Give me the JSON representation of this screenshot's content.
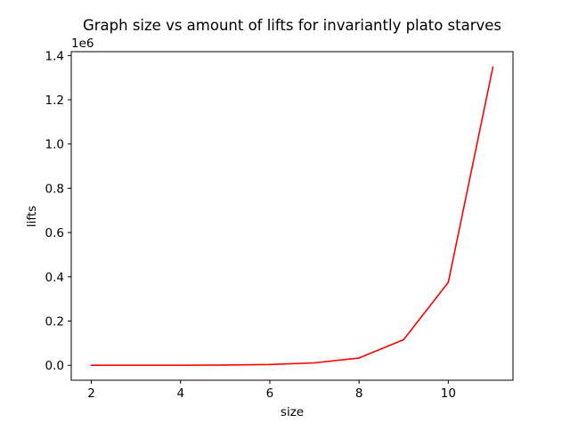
{
  "chart_data": {
    "type": "line",
    "title": "Graph size vs amount of lifts for invariantly plato starves",
    "xlabel": "size",
    "ylabel": "lifts",
    "y_offset_label": "1e6",
    "xlim": [
      1.55,
      11.45
    ],
    "ylim": [
      -67500,
      1417500
    ],
    "x_ticks": [
      2,
      4,
      6,
      8,
      10
    ],
    "x_tick_labels": [
      "2",
      "4",
      "6",
      "8",
      "10"
    ],
    "y_ticks": [
      0,
      200000,
      400000,
      600000,
      800000,
      1000000,
      1200000,
      1400000
    ],
    "y_tick_labels": [
      "0.0",
      "0.2",
      "0.4",
      "0.6",
      "0.8",
      "1.0",
      "1.2",
      "1.4"
    ],
    "grid": false,
    "series": [
      {
        "color": "#ff0000",
        "x": [
          2,
          3,
          4,
          5,
          6,
          7,
          8,
          9,
          10,
          11
        ],
        "y": [
          0,
          0,
          200,
          1000,
          3500,
          11000,
          33000,
          116000,
          375000,
          1348000
        ]
      }
    ]
  }
}
